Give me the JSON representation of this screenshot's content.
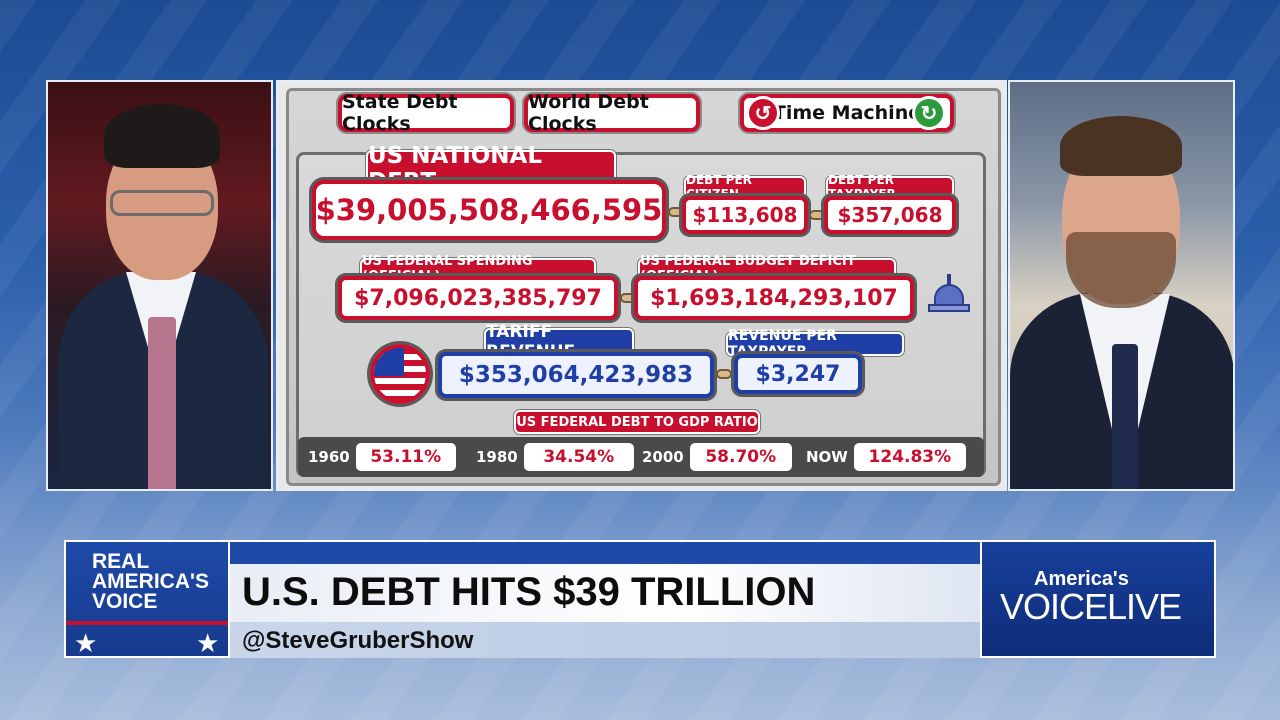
{
  "debt_clock": {
    "nav": {
      "state_debt_clocks": "State Debt Clocks",
      "world_debt_clocks": "World Debt Clocks",
      "time_machine": "Time Machine"
    },
    "national_debt": {
      "label": "US NATIONAL DEBT",
      "value": "$39,005,508,466,595"
    },
    "debt_per_citizen": {
      "label": "DEBT PER CITIZEN",
      "value": "$113,608"
    },
    "debt_per_taxpayer": {
      "label": "DEBT PER TAXPAYER",
      "value": "$357,068"
    },
    "federal_spending": {
      "label": "US FEDERAL SPENDING (OFFICIAL)",
      "value": "$7,096,023,385,797"
    },
    "budget_deficit": {
      "label": "US FEDERAL BUDGET DEFICIT (OFFICIAL)",
      "value": "$1,693,184,293,107"
    },
    "tariff_revenue": {
      "label": "TARIFF REVENUE",
      "value": "$353,064,423,983"
    },
    "revenue_per_taxpayer": {
      "label": "REVENUE PER TAXPAYER",
      "value": "$3,247"
    },
    "gdp_ratio": {
      "label": "US FEDERAL DEBT TO GDP RATIO",
      "items": [
        {
          "year": "1960",
          "value": "53.11%"
        },
        {
          "year": "1980",
          "value": "34.54%"
        },
        {
          "year": "2000",
          "value": "58.70%"
        },
        {
          "year": "NOW",
          "value": "124.83%"
        }
      ]
    }
  },
  "lower_third": {
    "logo": {
      "line1": "REAL",
      "line2": "AMERICA'S",
      "line3": "VOICE"
    },
    "headline": "U.S. DEBT HITS $39 TRILLION",
    "handle": "@SteveGruberShow",
    "brand": {
      "small": "America's",
      "big": "VOICELIVE"
    }
  },
  "colors": {
    "accent_red": "#c8102e",
    "accent_blue": "#1f3fa6",
    "brand_blue": "#1f4aa8"
  },
  "icons": {
    "back": "undo-arrow-icon",
    "forward": "redo-arrow-icon",
    "capitol": "capitol-dome-icon",
    "flag": "us-flag-icon"
  }
}
